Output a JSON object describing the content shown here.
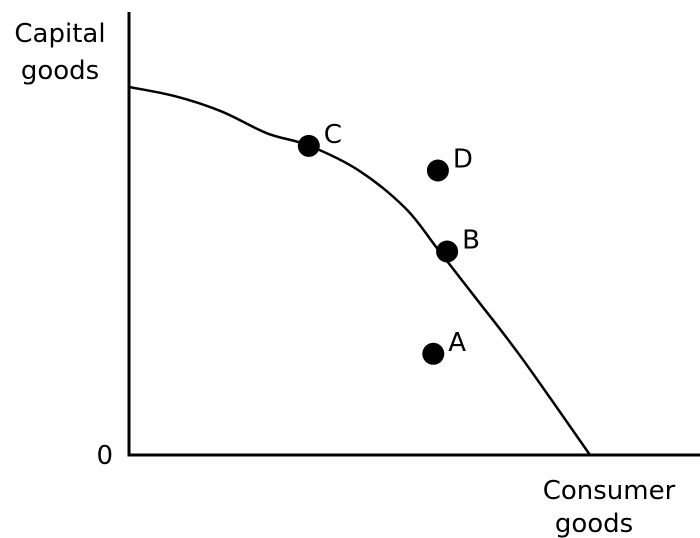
{
  "chart_data": {
    "type": "line",
    "title": "",
    "xlabel": [
      "Consumer",
      "goods"
    ],
    "ylabel": [
      "Capital",
      "goods"
    ],
    "origin_label": "0",
    "xlim": [
      0,
      100
    ],
    "ylim": [
      0,
      100
    ],
    "grid": false,
    "curve": {
      "x": [
        0,
        10,
        20,
        30,
        39,
        50,
        60,
        67,
        75,
        85,
        100
      ],
      "y": [
        100,
        97.5,
        93.4,
        87.4,
        84.1,
        77.2,
        67.0,
        55.9,
        43.0,
        26.7,
        0
      ]
    },
    "points": [
      {
        "label": "A",
        "x": 66,
        "y": 27.5
      },
      {
        "label": "B",
        "x": 69,
        "y": 55.3
      },
      {
        "label": "C",
        "x": 39,
        "y": 84.0
      },
      {
        "label": "D",
        "x": 67,
        "y": 77.3
      }
    ],
    "colors": {
      "ink": "#000000",
      "background": "#ffffff"
    }
  }
}
